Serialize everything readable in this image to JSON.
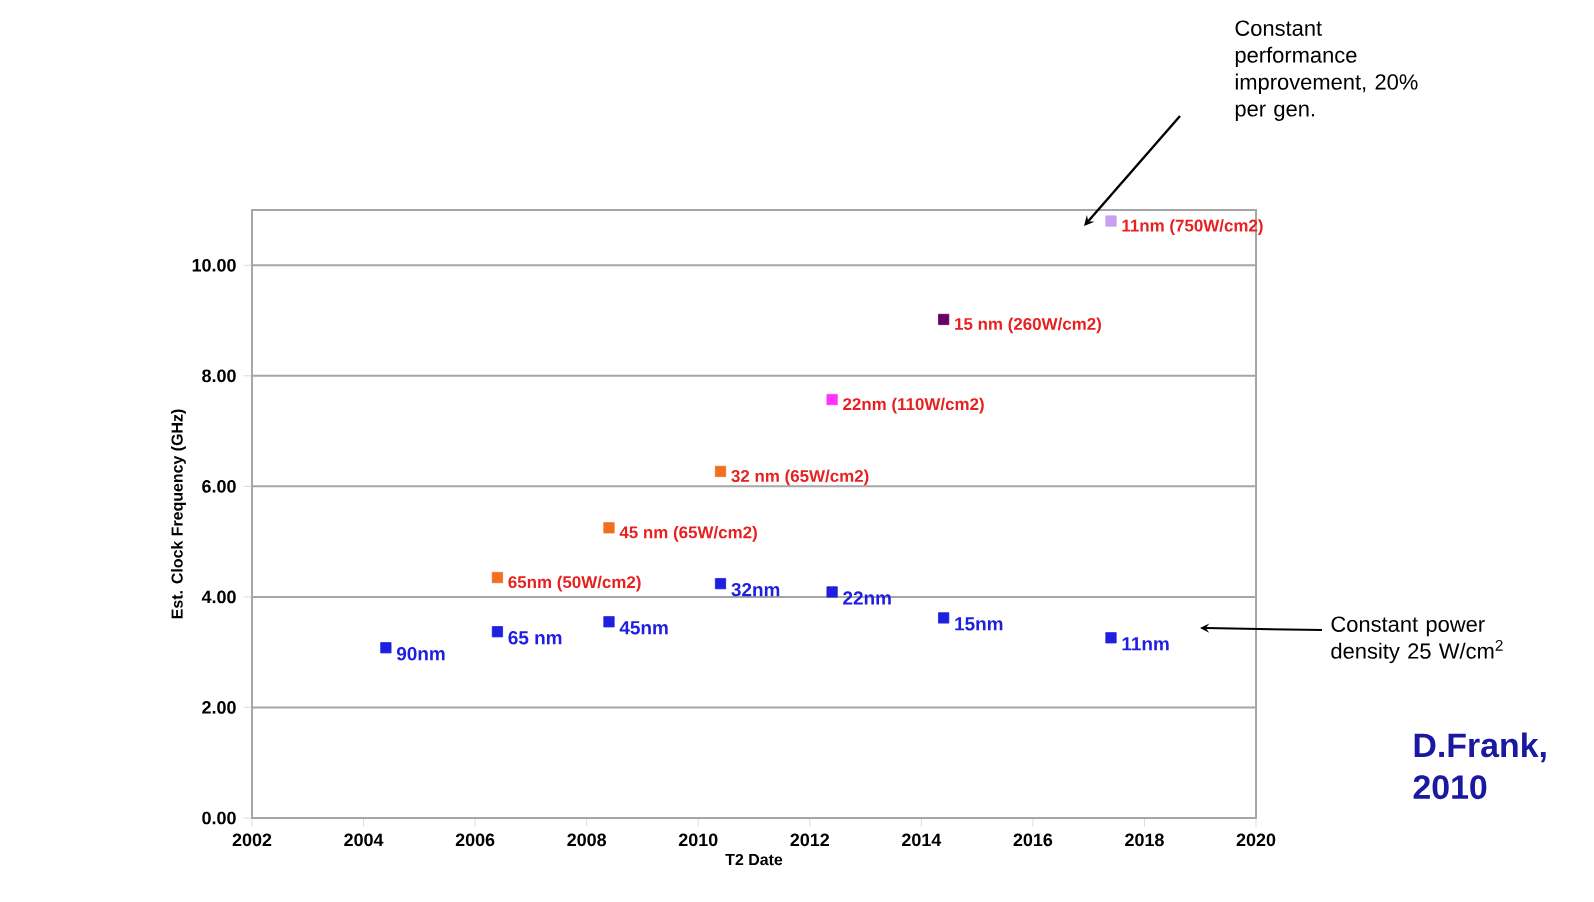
{
  "chart_data": {
    "type": "scatter",
    "xlabel": "T2 Date",
    "ylabel": "Est. Clock Frequency (GHz)",
    "xlim": [
      2002,
      2020
    ],
    "xticks": [
      2002,
      2004,
      2006,
      2008,
      2010,
      2012,
      2014,
      2016,
      2018,
      2020
    ],
    "ylim": [
      0,
      11
    ],
    "yticks": [
      {
        "value": 0,
        "label": "0.00"
      },
      {
        "value": 2,
        "label": "2.00"
      },
      {
        "value": 4,
        "label": "4.00"
      },
      {
        "value": 6,
        "label": "6.00"
      },
      {
        "value": 8,
        "label": "8.00"
      },
      {
        "value": 10,
        "label": "10.00"
      }
    ],
    "grid": "y",
    "marker": "square",
    "series": [
      {
        "color": "#1f1fe0",
        "x": [
          2004.4,
          2006.4,
          2008.4,
          2010.4,
          2012.4,
          2014.4,
          2017.4
        ],
        "values": [
          3.08,
          3.37,
          3.55,
          4.24,
          4.09,
          3.62,
          3.26
        ]
      },
      {
        "colors": [
          "#f07020",
          "#f07020",
          "#f07020",
          "#ff33ff",
          "#660066",
          "#c8a0f0"
        ],
        "x": [
          2006.4,
          2008.4,
          2010.4,
          2012.4,
          2014.4,
          2017.4
        ],
        "values": [
          4.35,
          5.25,
          6.27,
          7.57,
          9.02,
          10.8
        ]
      }
    ],
    "annotations": [
      {
        "text": "90nm",
        "x": 2004.4,
        "y": 3.08
      },
      {
        "text": "65 nm",
        "x": 2006.4,
        "y": 3.37
      },
      {
        "text": "45nm",
        "x": 2008.4,
        "y": 3.55
      },
      {
        "text": "32nm",
        "x": 2010.4,
        "y": 4.24
      },
      {
        "text": "22nm",
        "x": 2012.4,
        "y": 4.09
      },
      {
        "text": "15nm",
        "x": 2014.4,
        "y": 3.62
      },
      {
        "text": "11nm",
        "x": 2017.4,
        "y": 3.26
      },
      {
        "text": "65nm (50W/cm2)",
        "x": 2006.4,
        "y": 4.35
      },
      {
        "text": "45 nm (65W/cm2)",
        "x": 2008.4,
        "y": 5.25
      },
      {
        "text": "32 nm (65W/cm2)",
        "x": 2010.4,
        "y": 6.27
      },
      {
        "text": "22nm (110W/cm2)",
        "x": 2012.4,
        "y": 7.57
      },
      {
        "text": "15 nm (260W/cm2)",
        "x": 2014.4,
        "y": 9.02
      },
      {
        "text": "11nm (750W/cm2)",
        "x": 2017.4,
        "y": 10.8
      },
      "Constant performance improvement, 20% per gen.",
      "Constant power density 25 W/cm$^{2}$",
      "D.Frank, 2010"
    ]
  }
}
